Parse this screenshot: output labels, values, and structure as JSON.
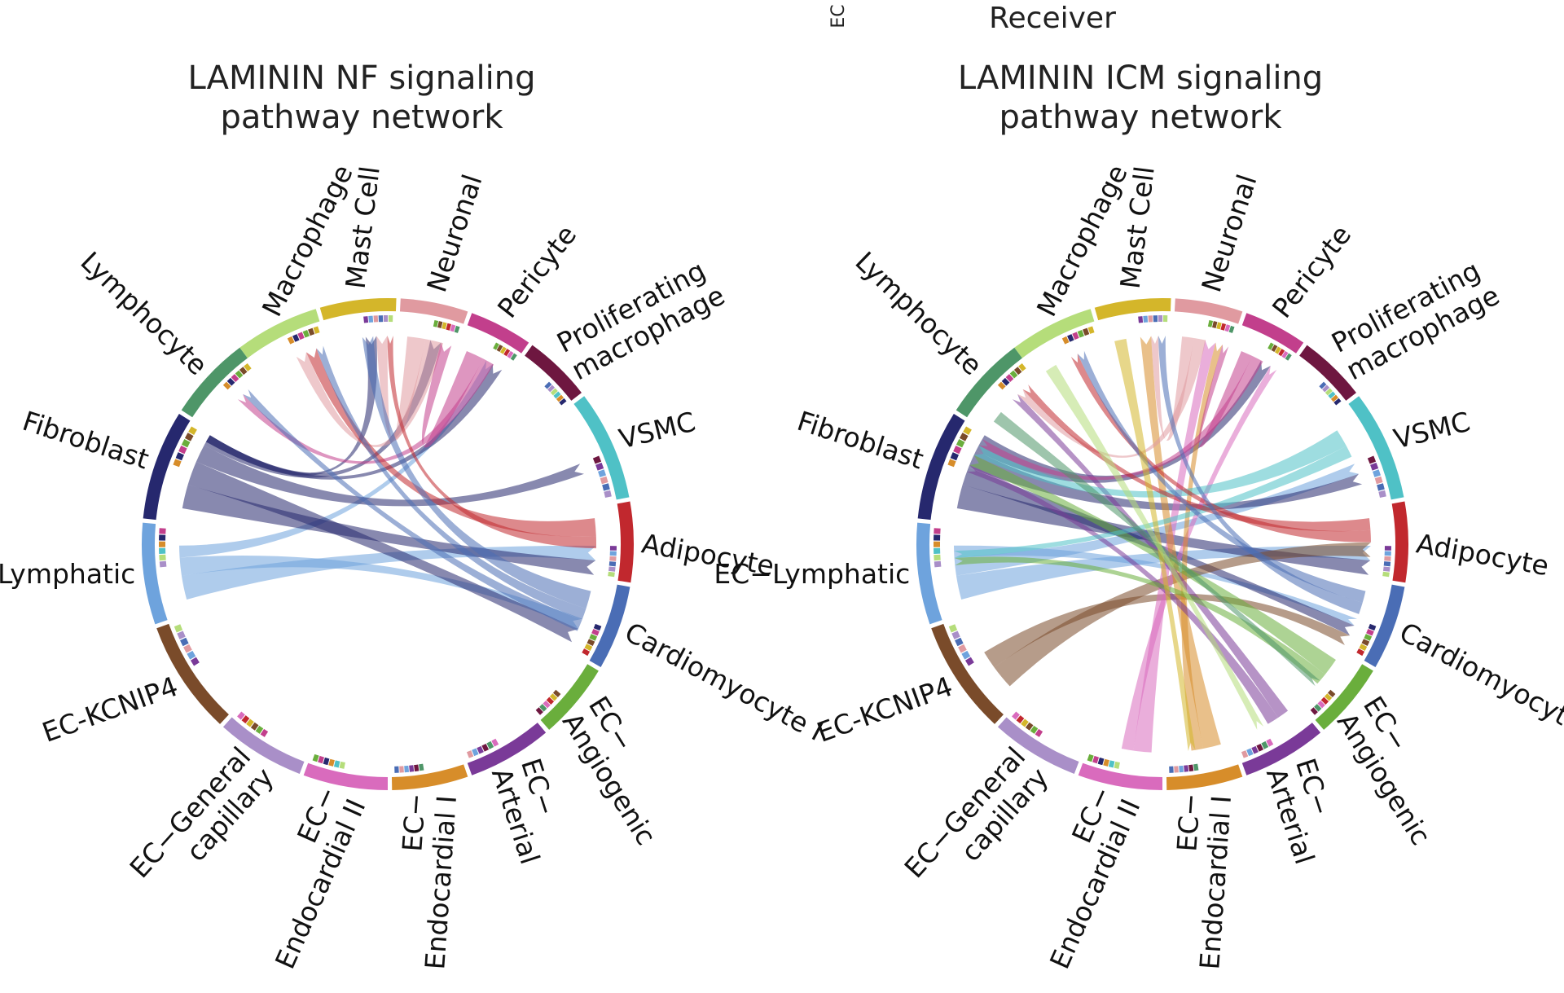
{
  "header": {
    "axis_fragment": "EC",
    "receiver_label": "Receiver"
  },
  "palette": {
    "Macrophage": "#b5dd7a",
    "Mast Cell": "#d4b62a",
    "Neuronal": "#e09aa0",
    "Pericyte": "#c23f8c",
    "Proliferating macrophage": "#6e1740",
    "VSMC": "#4fc1c6",
    "Adipocyte": "#c1282e",
    "Cardiomyocyte I": "#4a6db5",
    "EC-Angiogenic": "#6aae3c",
    "EC-Arterial": "#7a3a98",
    "EC-Endocardial I": "#d78d2a",
    "EC-Endocardial II": "#d96bbd",
    "EC-General capillary": "#a98fc8",
    "EC-KCNIP4": "#7a4b2a",
    "EC-Lymphatic": "#6ea3dd",
    "Fibroblast": "#26286e",
    "Lymphocyte": "#4e9668"
  },
  "chart_data": [
    {
      "type": "chord",
      "title_lines": [
        "LAMININ NF signaling",
        "pathway network"
      ],
      "segments": [
        {
          "name": "Macrophage",
          "label_lines": [
            "Macrophage"
          ]
        },
        {
          "name": "Mast Cell",
          "label_lines": [
            "Mast Cell"
          ]
        },
        {
          "name": "Neuronal",
          "label_lines": [
            "Neuronal"
          ]
        },
        {
          "name": "Pericyte",
          "label_lines": [
            "Pericyte"
          ]
        },
        {
          "name": "Proliferating macrophage",
          "label_lines": [
            "Proliferating",
            "macrophage"
          ]
        },
        {
          "name": "VSMC",
          "label_lines": [
            "VSMC"
          ]
        },
        {
          "name": "Adipocyte",
          "label_lines": [
            "Adipocyte"
          ]
        },
        {
          "name": "Cardiomyocyte I",
          "label_lines": [
            "Cardiomyocyte I"
          ]
        },
        {
          "name": "EC-Angiogenic",
          "label_lines": [
            "EC−",
            "Angiogenic"
          ]
        },
        {
          "name": "EC-Arterial",
          "label_lines": [
            "EC−",
            "Arterial"
          ]
        },
        {
          "name": "EC-Endocardial I",
          "label_lines": [
            "EC−",
            "Endocardial I"
          ]
        },
        {
          "name": "EC-Endocardial II",
          "label_lines": [
            "EC−",
            "Endocardial II"
          ]
        },
        {
          "name": "EC-General capillary",
          "label_lines": [
            "EC−General",
            "capillary"
          ]
        },
        {
          "name": "EC-KCNIP4",
          "label_lines": [
            "EC-KCNIP4"
          ]
        },
        {
          "name": "EC-Lymphatic",
          "label_lines": [
            "EC−Lymphatic"
          ]
        },
        {
          "name": "Fibroblast",
          "label_lines": [
            "Fibroblast"
          ]
        },
        {
          "name": "Lymphocyte",
          "label_lines": [
            "Lymphocyte"
          ]
        }
      ],
      "links": [
        {
          "source": "EC-Lymphatic",
          "target": "Adipocyte",
          "value": 3
        },
        {
          "source": "EC-Lymphatic",
          "target": "Cardiomyocyte I",
          "value": 2
        },
        {
          "source": "EC-Lymphatic",
          "target": "Pericyte",
          "value": 1
        },
        {
          "source": "Fibroblast",
          "target": "Adipocyte",
          "value": 3
        },
        {
          "source": "Fibroblast",
          "target": "Cardiomyocyte I",
          "value": 3
        },
        {
          "source": "Fibroblast",
          "target": "VSMC",
          "value": 2
        },
        {
          "source": "Fibroblast",
          "target": "Neuronal",
          "value": 2
        },
        {
          "source": "Fibroblast",
          "target": "Mast Cell",
          "value": 2
        },
        {
          "source": "Fibroblast",
          "target": "Pericyte",
          "value": 2
        },
        {
          "source": "Neuronal",
          "target": "Mast Cell",
          "value": 2
        },
        {
          "source": "Neuronal",
          "target": "Macrophage",
          "value": 2
        },
        {
          "source": "Pericyte",
          "target": "Neuronal",
          "value": 2
        },
        {
          "source": "Pericyte",
          "target": "Lymphocyte",
          "value": 1
        },
        {
          "source": "Adipocyte",
          "target": "Macrophage",
          "value": 2
        },
        {
          "source": "Adipocyte",
          "target": "Mast Cell",
          "value": 1
        },
        {
          "source": "Cardiomyocyte I",
          "target": "Mast Cell",
          "value": 2
        },
        {
          "source": "Cardiomyocyte I",
          "target": "Macrophage",
          "value": 1
        },
        {
          "source": "Cardiomyocyte I",
          "target": "Lymphocyte",
          "value": 1
        }
      ]
    },
    {
      "type": "chord",
      "title_lines": [
        "LAMININ ICM signaling",
        "pathway network"
      ],
      "segments": [
        {
          "name": "Macrophage",
          "label_lines": [
            "Macrophage"
          ]
        },
        {
          "name": "Mast Cell",
          "label_lines": [
            "Mast Cell"
          ]
        },
        {
          "name": "Neuronal",
          "label_lines": [
            "Neuronal"
          ]
        },
        {
          "name": "Pericyte",
          "label_lines": [
            "Pericyte"
          ]
        },
        {
          "name": "Proliferating macrophage",
          "label_lines": [
            "Proliferating",
            "macrophage"
          ]
        },
        {
          "name": "VSMC",
          "label_lines": [
            "VSMC"
          ]
        },
        {
          "name": "Adipocyte",
          "label_lines": [
            "Adipocyte"
          ]
        },
        {
          "name": "Cardiomyocyte I",
          "label_lines": [
            "Cardiomyocyte I"
          ]
        },
        {
          "name": "EC-Angiogenic",
          "label_lines": [
            "EC−",
            "Angiogenic"
          ]
        },
        {
          "name": "EC-Arterial",
          "label_lines": [
            "EC−",
            "Arterial"
          ]
        },
        {
          "name": "EC-Endocardial I",
          "label_lines": [
            "EC−",
            "Endocardial I"
          ]
        },
        {
          "name": "EC-Endocardial II",
          "label_lines": [
            "EC−",
            "Endocardial II"
          ]
        },
        {
          "name": "EC-General capillary",
          "label_lines": [
            "EC−General",
            "capillary"
          ]
        },
        {
          "name": "EC-KCNIP4",
          "label_lines": [
            "EC-KCNIP4"
          ]
        },
        {
          "name": "EC-Lymphatic",
          "label_lines": [
            "EC−Lymphatic"
          ]
        },
        {
          "name": "Fibroblast",
          "label_lines": [
            "Fibroblast"
          ]
        },
        {
          "name": "Lymphocyte",
          "label_lines": [
            "Lymphocyte"
          ]
        }
      ],
      "links": [
        {
          "source": "EC-Lymphatic",
          "target": "Adipocyte",
          "value": 3
        },
        {
          "source": "EC-Lymphatic",
          "target": "VSMC",
          "value": 2
        },
        {
          "source": "EC-Lymphatic",
          "target": "Cardiomyocyte I",
          "value": 1
        },
        {
          "source": "Fibroblast",
          "target": "Adipocyte",
          "value": 3
        },
        {
          "source": "Fibroblast",
          "target": "Cardiomyocyte I",
          "value": 2
        },
        {
          "source": "Fibroblast",
          "target": "VSMC",
          "value": 2
        },
        {
          "source": "Fibroblast",
          "target": "Pericyte",
          "value": 2
        },
        {
          "source": "EC-KCNIP4",
          "target": "Adipocyte",
          "value": 3
        },
        {
          "source": "EC-KCNIP4",
          "target": "Cardiomyocyte I",
          "value": 2
        },
        {
          "source": "EC-Endocardial II",
          "target": "Neuronal",
          "value": 2
        },
        {
          "source": "EC-Endocardial II",
          "target": "Pericyte",
          "value": 1
        },
        {
          "source": "EC-Endocardial I",
          "target": "Mast Cell",
          "value": 2
        },
        {
          "source": "EC-Endocardial I",
          "target": "Neuronal",
          "value": 1
        },
        {
          "source": "EC-Arterial",
          "target": "Lymphocyte",
          "value": 1
        },
        {
          "source": "EC-Arterial",
          "target": "Fibroblast",
          "value": 1
        },
        {
          "source": "EC-Angiogenic",
          "target": "Fibroblast",
          "value": 2
        },
        {
          "source": "EC-Angiogenic",
          "target": "EC-Lymphatic",
          "value": 1
        },
        {
          "source": "VSMC",
          "target": "Fibroblast",
          "value": 2
        },
        {
          "source": "VSMC",
          "target": "EC-Lymphatic",
          "value": 1
        },
        {
          "source": "Neuronal",
          "target": "Mast Cell",
          "value": 1
        },
        {
          "source": "Neuronal",
          "target": "Lymphocyte",
          "value": 1
        },
        {
          "source": "Pericyte",
          "target": "Neuronal",
          "value": 1
        },
        {
          "source": "Pericyte",
          "target": "Fibroblast",
          "value": 1
        },
        {
          "source": "Adipocyte",
          "target": "Lymphocyte",
          "value": 1
        },
        {
          "source": "Adipocyte",
          "target": "Macrophage",
          "value": 1
        },
        {
          "source": "Cardiomyocyte I",
          "target": "Macrophage",
          "value": 1
        },
        {
          "source": "Cardiomyocyte I",
          "target": "Mast Cell",
          "value": 1
        },
        {
          "source": "Mast Cell",
          "target": "EC-Endocardial I",
          "value": 1
        },
        {
          "source": "Lymphocyte",
          "target": "EC-Angiogenic",
          "value": 1
        },
        {
          "source": "Macrophage",
          "target": "EC-Arterial",
          "value": 1
        }
      ]
    }
  ]
}
